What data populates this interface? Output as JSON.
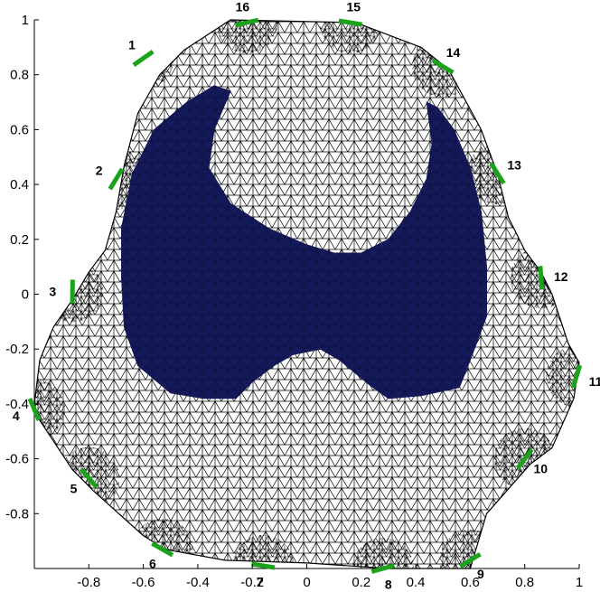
{
  "chart_data": {
    "type": "mesh",
    "xlim": [
      -1,
      1
    ],
    "ylim": [
      -1,
      1
    ],
    "x_ticks": [
      "-0.8",
      "-0.6",
      "-0.4",
      "-0.2",
      "0",
      "0.2",
      "0.4",
      "0.6",
      "0.8",
      "1"
    ],
    "x_tick_values": [
      -0.8,
      -0.6,
      -0.4,
      -0.2,
      0,
      0.2,
      0.4,
      0.6,
      0.8,
      1
    ],
    "y_ticks": [
      "1",
      "0.8",
      "0.6",
      "0.4",
      "0.2",
      "0",
      "-0.2",
      "-0.4",
      "-0.6",
      "-0.8"
    ],
    "y_tick_values": [
      1,
      0.8,
      0.6,
      0.4,
      0.2,
      0,
      -0.2,
      -0.4,
      -0.6,
      -0.8
    ],
    "boundary": [
      [
        -0.28,
        1.0
      ],
      [
        0.18,
        0.99
      ],
      [
        0.42,
        0.9
      ],
      [
        0.52,
        0.82
      ],
      [
        0.64,
        0.6
      ],
      [
        0.7,
        0.44
      ],
      [
        0.74,
        0.28
      ],
      [
        0.8,
        0.16
      ],
      [
        0.86,
        0.08
      ],
      [
        0.9,
        0.0
      ],
      [
        0.96,
        -0.18
      ],
      [
        1.0,
        -0.25
      ],
      [
        0.98,
        -0.38
      ],
      [
        0.9,
        -0.56
      ],
      [
        0.82,
        -0.62
      ],
      [
        0.66,
        -0.8
      ],
      [
        0.6,
        -1.0
      ],
      [
        0.3,
        -1.0
      ],
      [
        0.0,
        -0.98
      ],
      [
        -0.3,
        -0.97
      ],
      [
        -0.52,
        -0.93
      ],
      [
        -0.6,
        -0.88
      ],
      [
        -0.78,
        -0.72
      ],
      [
        -0.86,
        -0.64
      ],
      [
        -0.98,
        -0.46
      ],
      [
        -1.0,
        -0.4
      ],
      [
        -0.98,
        -0.24
      ],
      [
        -0.93,
        -0.12
      ],
      [
        -0.86,
        -0.02
      ],
      [
        -0.8,
        0.08
      ],
      [
        -0.74,
        0.16
      ],
      [
        -0.7,
        0.3
      ],
      [
        -0.67,
        0.47
      ],
      [
        -0.62,
        0.66
      ],
      [
        -0.54,
        0.8
      ],
      [
        -0.45,
        0.89
      ],
      [
        -0.28,
        1.0
      ]
    ],
    "inclusion": {
      "color": "#141a5c",
      "outline": [
        [
          -0.28,
          0.74
        ],
        [
          -0.34,
          0.6
        ],
        [
          -0.36,
          0.46
        ],
        [
          -0.28,
          0.33
        ],
        [
          -0.14,
          0.24
        ],
        [
          0.0,
          0.18
        ],
        [
          0.1,
          0.15
        ],
        [
          0.2,
          0.15
        ],
        [
          0.3,
          0.2
        ],
        [
          0.38,
          0.3
        ],
        [
          0.44,
          0.42
        ],
        [
          0.46,
          0.55
        ],
        [
          0.44,
          0.7
        ],
        [
          0.48,
          0.68
        ],
        [
          0.54,
          0.6
        ],
        [
          0.6,
          0.46
        ],
        [
          0.64,
          0.3
        ],
        [
          0.66,
          0.1
        ],
        [
          0.66,
          -0.08
        ],
        [
          0.6,
          -0.24
        ],
        [
          0.56,
          -0.34
        ],
        [
          0.42,
          -0.37
        ],
        [
          0.3,
          -0.38
        ],
        [
          0.23,
          -0.33
        ],
        [
          0.12,
          -0.24
        ],
        [
          0.05,
          -0.2
        ],
        [
          -0.05,
          -0.22
        ],
        [
          -0.12,
          -0.26
        ],
        [
          -0.2,
          -0.32
        ],
        [
          -0.26,
          -0.38
        ],
        [
          -0.38,
          -0.38
        ],
        [
          -0.5,
          -0.36
        ],
        [
          -0.62,
          -0.26
        ],
        [
          -0.67,
          -0.12
        ],
        [
          -0.68,
          0.06
        ],
        [
          -0.68,
          0.24
        ],
        [
          -0.64,
          0.44
        ],
        [
          -0.56,
          0.6
        ],
        [
          -0.44,
          0.7
        ],
        [
          -0.34,
          0.76
        ]
      ]
    },
    "electrodes": [
      {
        "label": "1",
        "x": -0.6,
        "y": 0.86
      },
      {
        "label": "2",
        "x": -0.7,
        "y": 0.42
      },
      {
        "label": "3",
        "x": -0.86,
        "y": 0.01
      },
      {
        "label": "4",
        "x": -1.0,
        "y": -0.42
      },
      {
        "label": "5",
        "x": -0.8,
        "y": -0.67
      },
      {
        "label": "6",
        "x": -0.53,
        "y": -0.93
      },
      {
        "label": "7",
        "x": -0.16,
        "y": -0.99
      },
      {
        "label": "8",
        "x": 0.28,
        "y": -1.0
      },
      {
        "label": "9",
        "x": 0.6,
        "y": -0.97
      },
      {
        "label": "10",
        "x": 0.8,
        "y": -0.6
      },
      {
        "label": "11",
        "x": 0.99,
        "y": -0.3
      },
      {
        "label": "12",
        "x": 0.86,
        "y": 0.06
      },
      {
        "label": "13",
        "x": 0.7,
        "y": 0.44
      },
      {
        "label": "14",
        "x": 0.5,
        "y": 0.83
      },
      {
        "label": "15",
        "x": 0.16,
        "y": 0.99
      },
      {
        "label": "16",
        "x": -0.22,
        "y": 0.99
      }
    ],
    "colors": {
      "mesh": "#000000",
      "inclusion": "#141a5c",
      "electrode": "#1aa31a",
      "axis": "#000000"
    }
  }
}
